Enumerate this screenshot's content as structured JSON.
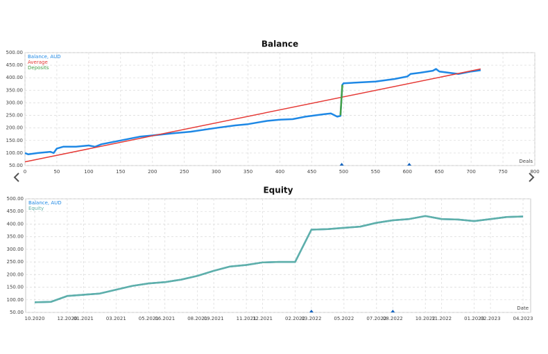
{
  "chart_data": [
    {
      "type": "line",
      "title": "Balance",
      "xlabel": "Deals",
      "xlim": [
        0,
        800
      ],
      "xticks": [
        0,
        50,
        100,
        150,
        200,
        250,
        300,
        350,
        400,
        450,
        500,
        550,
        600,
        650,
        700,
        750,
        800
      ],
      "ylim": [
        50,
        500
      ],
      "yticks": [
        {
          "value": 50,
          "label": "50.00"
        },
        {
          "value": 100,
          "label": "100.00"
        },
        {
          "value": 150,
          "label": "150.00"
        },
        {
          "value": 200,
          "label": "200.00"
        },
        {
          "value": 250,
          "label": "250.00"
        },
        {
          "value": 300,
          "label": "300.00"
        },
        {
          "value": 350,
          "label": "350.00"
        },
        {
          "value": 400,
          "label": "400.00"
        },
        {
          "value": 450,
          "label": "450.00"
        },
        {
          "value": 500,
          "label": "500.00"
        }
      ],
      "grid": true,
      "legend": "upper left",
      "deposit_markers_x": [
        497,
        603
      ],
      "series": [
        {
          "name": "Balance, AUD",
          "color": "#1e88e5",
          "width": 2.5,
          "x": [
            0,
            5,
            20,
            40,
            45,
            50,
            60,
            80,
            100,
            110,
            120,
            150,
            180,
            200,
            230,
            260,
            300,
            330,
            350,
            380,
            400,
            420,
            440,
            470,
            480,
            490,
            495,
            498,
            500,
            550,
            580,
            600,
            605,
            620,
            640,
            645,
            650,
            680,
            700,
            715
          ],
          "values": [
            100,
            95,
            100,
            105,
            100,
            118,
            125,
            125,
            130,
            125,
            135,
            150,
            165,
            170,
            178,
            185,
            200,
            210,
            215,
            228,
            233,
            235,
            245,
            255,
            258,
            245,
            248,
            372,
            378,
            385,
            395,
            405,
            415,
            420,
            428,
            435,
            425,
            415,
            425,
            430
          ]
        },
        {
          "name": "Average",
          "color": "#e53935",
          "width": 1.5,
          "x": [
            0,
            715
          ],
          "values": [
            65,
            435
          ]
        },
        {
          "name": "Deposits",
          "color": "#43a047",
          "width": 2.5,
          "x": [
            495,
            498
          ],
          "values": [
            250,
            372
          ]
        }
      ]
    },
    {
      "type": "line",
      "title": "Equity",
      "xlabel": "Date",
      "xlim": [
        "2020-10",
        "2023-04"
      ],
      "xticks": [
        {
          "value": "2020-10",
          "label": "10.2020"
        },
        {
          "value": "2020-12",
          "label": "12.2020"
        },
        {
          "value": "2021-01",
          "label": "01.2021"
        },
        {
          "value": "2021-03",
          "label": "03.2021"
        },
        {
          "value": "2021-05",
          "label": "05.2021"
        },
        {
          "value": "2021-06",
          "label": "06.2021"
        },
        {
          "value": "2021-08",
          "label": "08.2021"
        },
        {
          "value": "2021-09",
          "label": "09.2021"
        },
        {
          "value": "2021-11",
          "label": "11.2021"
        },
        {
          "value": "2021-12",
          "label": "12.2021"
        },
        {
          "value": "2022-02",
          "label": "02.2022"
        },
        {
          "value": "2022-03",
          "label": "03.2022"
        },
        {
          "value": "2022-05",
          "label": "05.2022"
        },
        {
          "value": "2022-07",
          "label": "07.2022"
        },
        {
          "value": "2022-08",
          "label": "08.2022"
        },
        {
          "value": "2022-10",
          "label": "10.2022"
        },
        {
          "value": "2022-11",
          "label": "11.2022"
        },
        {
          "value": "2023-01",
          "label": "01.2023"
        },
        {
          "value": "2023-02",
          "label": "02.2023"
        },
        {
          "value": "2023-04",
          "label": "04.2023"
        }
      ],
      "ylim": [
        50,
        500
      ],
      "yticks": [
        {
          "value": 50,
          "label": "50.00"
        },
        {
          "value": 100,
          "label": "100.00"
        },
        {
          "value": 150,
          "label": "150.00"
        },
        {
          "value": 200,
          "label": "200.00"
        },
        {
          "value": 250,
          "label": "250.00"
        },
        {
          "value": 300,
          "label": "300.00"
        },
        {
          "value": 350,
          "label": "350.00"
        },
        {
          "value": 400,
          "label": "400.00"
        },
        {
          "value": 450,
          "label": "450.00"
        },
        {
          "value": 500,
          "label": "500.00"
        }
      ],
      "grid": true,
      "legend": "upper left",
      "deposit_markers_x": [
        "2022-03",
        "2022-08"
      ],
      "series": [
        {
          "name": "Balance, AUD",
          "color": "#1e88e5",
          "width": 2.5,
          "x": [
            "2020-10",
            "2020-11",
            "2020-12",
            "2021-01",
            "2021-02",
            "2021-03",
            "2021-04",
            "2021-05",
            "2021-06",
            "2021-07",
            "2021-08",
            "2021-09",
            "2021-10",
            "2021-11",
            "2021-12",
            "2022-01",
            "2022-02",
            "2022-03",
            "2022-04",
            "2022-05",
            "2022-06",
            "2022-07",
            "2022-08",
            "2022-09",
            "2022-10",
            "2022-11",
            "2022-12",
            "2023-01",
            "2023-02",
            "2023-03",
            "2023-04"
          ],
          "values": [
            90,
            92,
            115,
            120,
            125,
            140,
            155,
            165,
            170,
            180,
            195,
            215,
            232,
            238,
            248,
            250,
            250,
            378,
            380,
            385,
            390,
            405,
            415,
            420,
            432,
            420,
            418,
            412,
            420,
            428,
            430
          ]
        },
        {
          "name": "Equity",
          "color": "#5fb0a8",
          "width": 2.5,
          "x": [
            "2020-10",
            "2020-11",
            "2020-12",
            "2021-01",
            "2021-02",
            "2021-03",
            "2021-04",
            "2021-05",
            "2021-06",
            "2021-07",
            "2021-08",
            "2021-09",
            "2021-10",
            "2021-11",
            "2021-12",
            "2022-01",
            "2022-02",
            "2022-03",
            "2022-04",
            "2022-05",
            "2022-06",
            "2022-07",
            "2022-08",
            "2022-09",
            "2022-10",
            "2022-11",
            "2022-12",
            "2023-01",
            "2023-02",
            "2023-03",
            "2023-04"
          ],
          "values": [
            90,
            92,
            115,
            120,
            125,
            140,
            155,
            165,
            170,
            180,
            195,
            215,
            232,
            238,
            248,
            250,
            250,
            378,
            380,
            385,
            390,
            405,
            415,
            420,
            432,
            420,
            418,
            412,
            420,
            428,
            430
          ]
        }
      ]
    }
  ]
}
